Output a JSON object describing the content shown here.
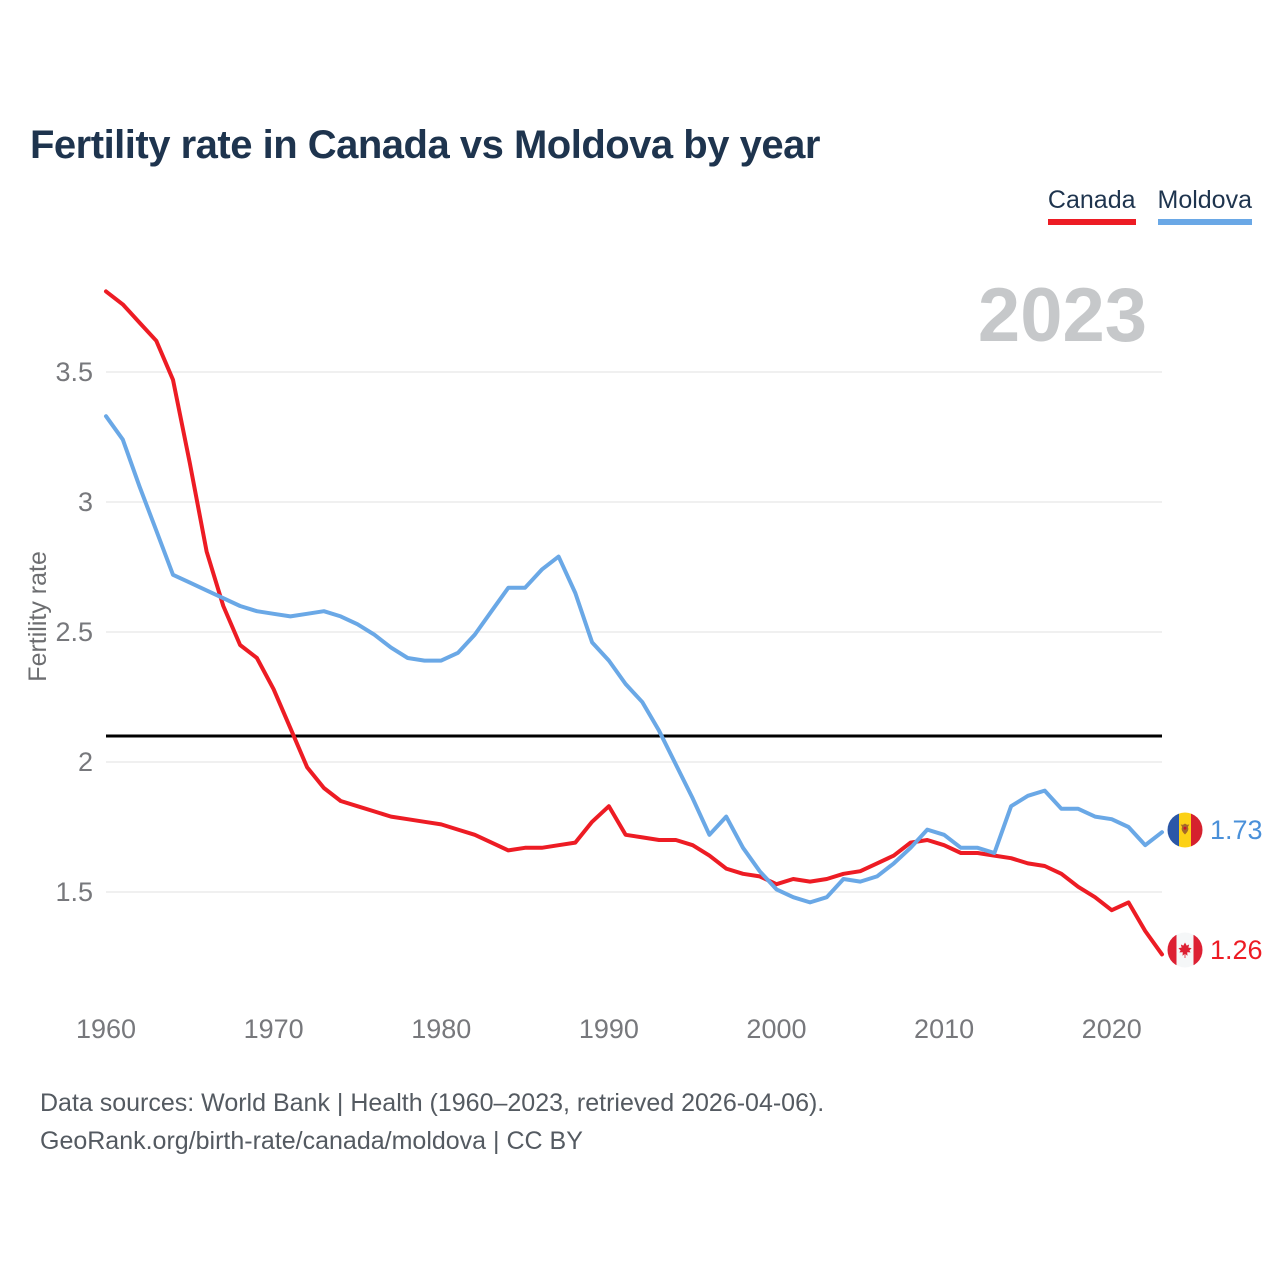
{
  "page": {
    "title": "Fertility rate in Canada vs Moldova by year",
    "watermark_year": "2023"
  },
  "legend": {
    "canada": {
      "label": "Canada",
      "color": "#ed1c24"
    },
    "moldova": {
      "label": "Moldova",
      "color": "#6aa8e6"
    }
  },
  "end_labels": {
    "moldova": {
      "country": "Moldova",
      "value": "1.73",
      "text_color": "#4a90d9"
    },
    "canada": {
      "country": "Canada",
      "value": "1.26",
      "text_color": "#ed1c24"
    }
  },
  "footer": {
    "line1": "Data sources: World Bank | Health (1960–2023, retrieved 2026-04-06).",
    "line2": "GeoRank.org/birth-rate/canada/moldova | CC BY"
  },
  "chart_data": {
    "type": "line",
    "title": "Fertility rate in Canada vs Moldova by year",
    "xlabel": "",
    "ylabel": "Fertility rate",
    "xlim": [
      1960,
      2023
    ],
    "ylim": [
      1.1,
      3.9
    ],
    "grid": "horizontal",
    "legend_position": "top-right",
    "y_ticks": [
      1.5,
      2,
      2.5,
      3,
      3.5
    ],
    "x_ticks": [
      1960,
      1970,
      1980,
      1990,
      2000,
      2010,
      2020
    ],
    "replacement_level_line": 2.1,
    "x": [
      1960,
      1961,
      1962,
      1963,
      1964,
      1965,
      1966,
      1967,
      1968,
      1969,
      1970,
      1971,
      1972,
      1973,
      1974,
      1975,
      1976,
      1977,
      1978,
      1979,
      1980,
      1981,
      1982,
      1983,
      1984,
      1985,
      1986,
      1987,
      1988,
      1989,
      1990,
      1991,
      1992,
      1993,
      1994,
      1995,
      1996,
      1997,
      1998,
      1999,
      2000,
      2001,
      2002,
      2003,
      2004,
      2005,
      2006,
      2007,
      2008,
      2009,
      2010,
      2011,
      2012,
      2013,
      2014,
      2015,
      2016,
      2017,
      2018,
      2019,
      2020,
      2021,
      2022,
      2023
    ],
    "series": [
      {
        "name": "Canada",
        "color": "#ed1c24",
        "final_value": 1.26,
        "values": [
          3.81,
          3.76,
          3.69,
          3.62,
          3.47,
          3.15,
          2.81,
          2.6,
          2.45,
          2.4,
          2.28,
          2.13,
          1.98,
          1.9,
          1.85,
          1.83,
          1.81,
          1.79,
          1.78,
          1.77,
          1.76,
          1.74,
          1.72,
          1.69,
          1.66,
          1.67,
          1.67,
          1.68,
          1.69,
          1.77,
          1.83,
          1.72,
          1.71,
          1.7,
          1.7,
          1.68,
          1.64,
          1.59,
          1.57,
          1.56,
          1.53,
          1.55,
          1.54,
          1.55,
          1.57,
          1.58,
          1.61,
          1.64,
          1.69,
          1.7,
          1.68,
          1.65,
          1.65,
          1.64,
          1.63,
          1.61,
          1.6,
          1.57,
          1.52,
          1.48,
          1.43,
          1.46,
          1.35,
          1.26
        ]
      },
      {
        "name": "Moldova",
        "color": "#6aa8e6",
        "final_value": 1.73,
        "values": [
          3.33,
          3.24,
          3.06,
          2.89,
          2.72,
          2.69,
          2.66,
          2.63,
          2.6,
          2.58,
          2.57,
          2.56,
          2.57,
          2.58,
          2.56,
          2.53,
          2.49,
          2.44,
          2.4,
          2.39,
          2.39,
          2.42,
          2.49,
          2.58,
          2.67,
          2.67,
          2.74,
          2.79,
          2.65,
          2.46,
          2.39,
          2.3,
          2.23,
          2.12,
          1.99,
          1.86,
          1.72,
          1.79,
          1.67,
          1.58,
          1.51,
          1.48,
          1.46,
          1.48,
          1.55,
          1.54,
          1.56,
          1.61,
          1.67,
          1.74,
          1.72,
          1.67,
          1.67,
          1.65,
          1.83,
          1.87,
          1.89,
          1.82,
          1.82,
          1.79,
          1.78,
          1.75,
          1.68,
          1.73
        ]
      }
    ]
  }
}
